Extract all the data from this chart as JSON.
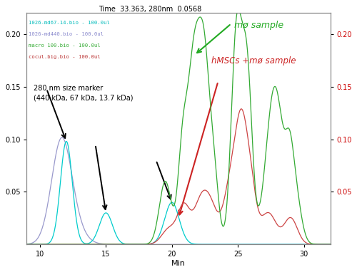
{
  "title": "Time  33.363, 280nm  0.0568",
  "xlabel": "Min",
  "xlim": [
    9,
    32
  ],
  "ylim": [
    0,
    0.22
  ],
  "yticks": [
    0.05,
    0.1,
    0.15,
    0.2
  ],
  "xticks": [
    10,
    15,
    20,
    25,
    30
  ],
  "legend_entries": [
    {
      "label": "1026-md67-14.bio - 100.0ul",
      "color": "#00BBBB"
    },
    {
      "label": "1026-md440.bio - 100.0ul",
      "color": "#8888CC"
    },
    {
      "label": "macro 100.bio - 100.0ul",
      "color": "#33AA33"
    },
    {
      "label": "cocul.big.bio - 100.0ul",
      "color": "#BB3333"
    }
  ],
  "annotation_text": "280 nm size marker\n(440 kDa, 67 kDa, 13.7 kDa)",
  "mo_label": "mø sample",
  "hmsc_label": "hMSCs +mø sample",
  "background_color": "#ffffff",
  "plot_bg": "#ffffff"
}
